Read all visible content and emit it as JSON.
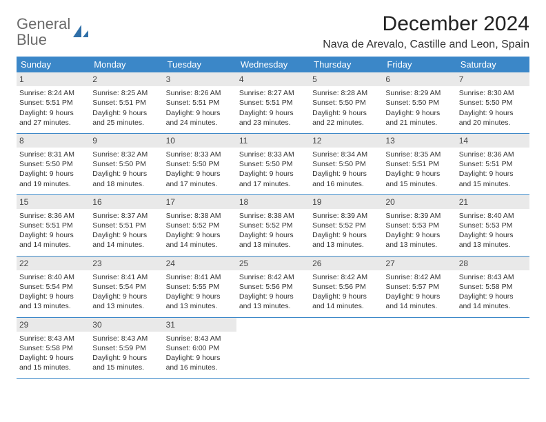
{
  "brand": {
    "word1": "General",
    "word2": "Blue"
  },
  "title": "December 2024",
  "location": "Nava de Arevalo, Castille and Leon, Spain",
  "colors": {
    "header_bg": "#3b87c8",
    "header_text": "#ffffff",
    "daynum_bg": "#e9e9e9",
    "row_border": "#3b87c8",
    "logo_gray": "#6b6b6b",
    "logo_blue": "#2f6fa8",
    "body_text": "#333333",
    "background": "#ffffff"
  },
  "fonts": {
    "family": "Arial",
    "title_size_pt": 22,
    "location_size_pt": 12,
    "dow_size_pt": 10,
    "daynum_size_pt": 9,
    "body_size_pt": 8
  },
  "days_of_week": [
    "Sunday",
    "Monday",
    "Tuesday",
    "Wednesday",
    "Thursday",
    "Friday",
    "Saturday"
  ],
  "weeks": [
    [
      {
        "num": "1",
        "sunrise": "Sunrise: 8:24 AM",
        "sunset": "Sunset: 5:51 PM",
        "d1": "Daylight: 9 hours",
        "d2": "and 27 minutes."
      },
      {
        "num": "2",
        "sunrise": "Sunrise: 8:25 AM",
        "sunset": "Sunset: 5:51 PM",
        "d1": "Daylight: 9 hours",
        "d2": "and 25 minutes."
      },
      {
        "num": "3",
        "sunrise": "Sunrise: 8:26 AM",
        "sunset": "Sunset: 5:51 PM",
        "d1": "Daylight: 9 hours",
        "d2": "and 24 minutes."
      },
      {
        "num": "4",
        "sunrise": "Sunrise: 8:27 AM",
        "sunset": "Sunset: 5:51 PM",
        "d1": "Daylight: 9 hours",
        "d2": "and 23 minutes."
      },
      {
        "num": "5",
        "sunrise": "Sunrise: 8:28 AM",
        "sunset": "Sunset: 5:50 PM",
        "d1": "Daylight: 9 hours",
        "d2": "and 22 minutes."
      },
      {
        "num": "6",
        "sunrise": "Sunrise: 8:29 AM",
        "sunset": "Sunset: 5:50 PM",
        "d1": "Daylight: 9 hours",
        "d2": "and 21 minutes."
      },
      {
        "num": "7",
        "sunrise": "Sunrise: 8:30 AM",
        "sunset": "Sunset: 5:50 PM",
        "d1": "Daylight: 9 hours",
        "d2": "and 20 minutes."
      }
    ],
    [
      {
        "num": "8",
        "sunrise": "Sunrise: 8:31 AM",
        "sunset": "Sunset: 5:50 PM",
        "d1": "Daylight: 9 hours",
        "d2": "and 19 minutes."
      },
      {
        "num": "9",
        "sunrise": "Sunrise: 8:32 AM",
        "sunset": "Sunset: 5:50 PM",
        "d1": "Daylight: 9 hours",
        "d2": "and 18 minutes."
      },
      {
        "num": "10",
        "sunrise": "Sunrise: 8:33 AM",
        "sunset": "Sunset: 5:50 PM",
        "d1": "Daylight: 9 hours",
        "d2": "and 17 minutes."
      },
      {
        "num": "11",
        "sunrise": "Sunrise: 8:33 AM",
        "sunset": "Sunset: 5:50 PM",
        "d1": "Daylight: 9 hours",
        "d2": "and 17 minutes."
      },
      {
        "num": "12",
        "sunrise": "Sunrise: 8:34 AM",
        "sunset": "Sunset: 5:50 PM",
        "d1": "Daylight: 9 hours",
        "d2": "and 16 minutes."
      },
      {
        "num": "13",
        "sunrise": "Sunrise: 8:35 AM",
        "sunset": "Sunset: 5:51 PM",
        "d1": "Daylight: 9 hours",
        "d2": "and 15 minutes."
      },
      {
        "num": "14",
        "sunrise": "Sunrise: 8:36 AM",
        "sunset": "Sunset: 5:51 PM",
        "d1": "Daylight: 9 hours",
        "d2": "and 15 minutes."
      }
    ],
    [
      {
        "num": "15",
        "sunrise": "Sunrise: 8:36 AM",
        "sunset": "Sunset: 5:51 PM",
        "d1": "Daylight: 9 hours",
        "d2": "and 14 minutes."
      },
      {
        "num": "16",
        "sunrise": "Sunrise: 8:37 AM",
        "sunset": "Sunset: 5:51 PM",
        "d1": "Daylight: 9 hours",
        "d2": "and 14 minutes."
      },
      {
        "num": "17",
        "sunrise": "Sunrise: 8:38 AM",
        "sunset": "Sunset: 5:52 PM",
        "d1": "Daylight: 9 hours",
        "d2": "and 14 minutes."
      },
      {
        "num": "18",
        "sunrise": "Sunrise: 8:38 AM",
        "sunset": "Sunset: 5:52 PM",
        "d1": "Daylight: 9 hours",
        "d2": "and 13 minutes."
      },
      {
        "num": "19",
        "sunrise": "Sunrise: 8:39 AM",
        "sunset": "Sunset: 5:52 PM",
        "d1": "Daylight: 9 hours",
        "d2": "and 13 minutes."
      },
      {
        "num": "20",
        "sunrise": "Sunrise: 8:39 AM",
        "sunset": "Sunset: 5:53 PM",
        "d1": "Daylight: 9 hours",
        "d2": "and 13 minutes."
      },
      {
        "num": "21",
        "sunrise": "Sunrise: 8:40 AM",
        "sunset": "Sunset: 5:53 PM",
        "d1": "Daylight: 9 hours",
        "d2": "and 13 minutes."
      }
    ],
    [
      {
        "num": "22",
        "sunrise": "Sunrise: 8:40 AM",
        "sunset": "Sunset: 5:54 PM",
        "d1": "Daylight: 9 hours",
        "d2": "and 13 minutes."
      },
      {
        "num": "23",
        "sunrise": "Sunrise: 8:41 AM",
        "sunset": "Sunset: 5:54 PM",
        "d1": "Daylight: 9 hours",
        "d2": "and 13 minutes."
      },
      {
        "num": "24",
        "sunrise": "Sunrise: 8:41 AM",
        "sunset": "Sunset: 5:55 PM",
        "d1": "Daylight: 9 hours",
        "d2": "and 13 minutes."
      },
      {
        "num": "25",
        "sunrise": "Sunrise: 8:42 AM",
        "sunset": "Sunset: 5:56 PM",
        "d1": "Daylight: 9 hours",
        "d2": "and 13 minutes."
      },
      {
        "num": "26",
        "sunrise": "Sunrise: 8:42 AM",
        "sunset": "Sunset: 5:56 PM",
        "d1": "Daylight: 9 hours",
        "d2": "and 14 minutes."
      },
      {
        "num": "27",
        "sunrise": "Sunrise: 8:42 AM",
        "sunset": "Sunset: 5:57 PM",
        "d1": "Daylight: 9 hours",
        "d2": "and 14 minutes."
      },
      {
        "num": "28",
        "sunrise": "Sunrise: 8:43 AM",
        "sunset": "Sunset: 5:58 PM",
        "d1": "Daylight: 9 hours",
        "d2": "and 14 minutes."
      }
    ],
    [
      {
        "num": "29",
        "sunrise": "Sunrise: 8:43 AM",
        "sunset": "Sunset: 5:58 PM",
        "d1": "Daylight: 9 hours",
        "d2": "and 15 minutes."
      },
      {
        "num": "30",
        "sunrise": "Sunrise: 8:43 AM",
        "sunset": "Sunset: 5:59 PM",
        "d1": "Daylight: 9 hours",
        "d2": "and 15 minutes."
      },
      {
        "num": "31",
        "sunrise": "Sunrise: 8:43 AM",
        "sunset": "Sunset: 6:00 PM",
        "d1": "Daylight: 9 hours",
        "d2": "and 16 minutes."
      },
      null,
      null,
      null,
      null
    ]
  ]
}
